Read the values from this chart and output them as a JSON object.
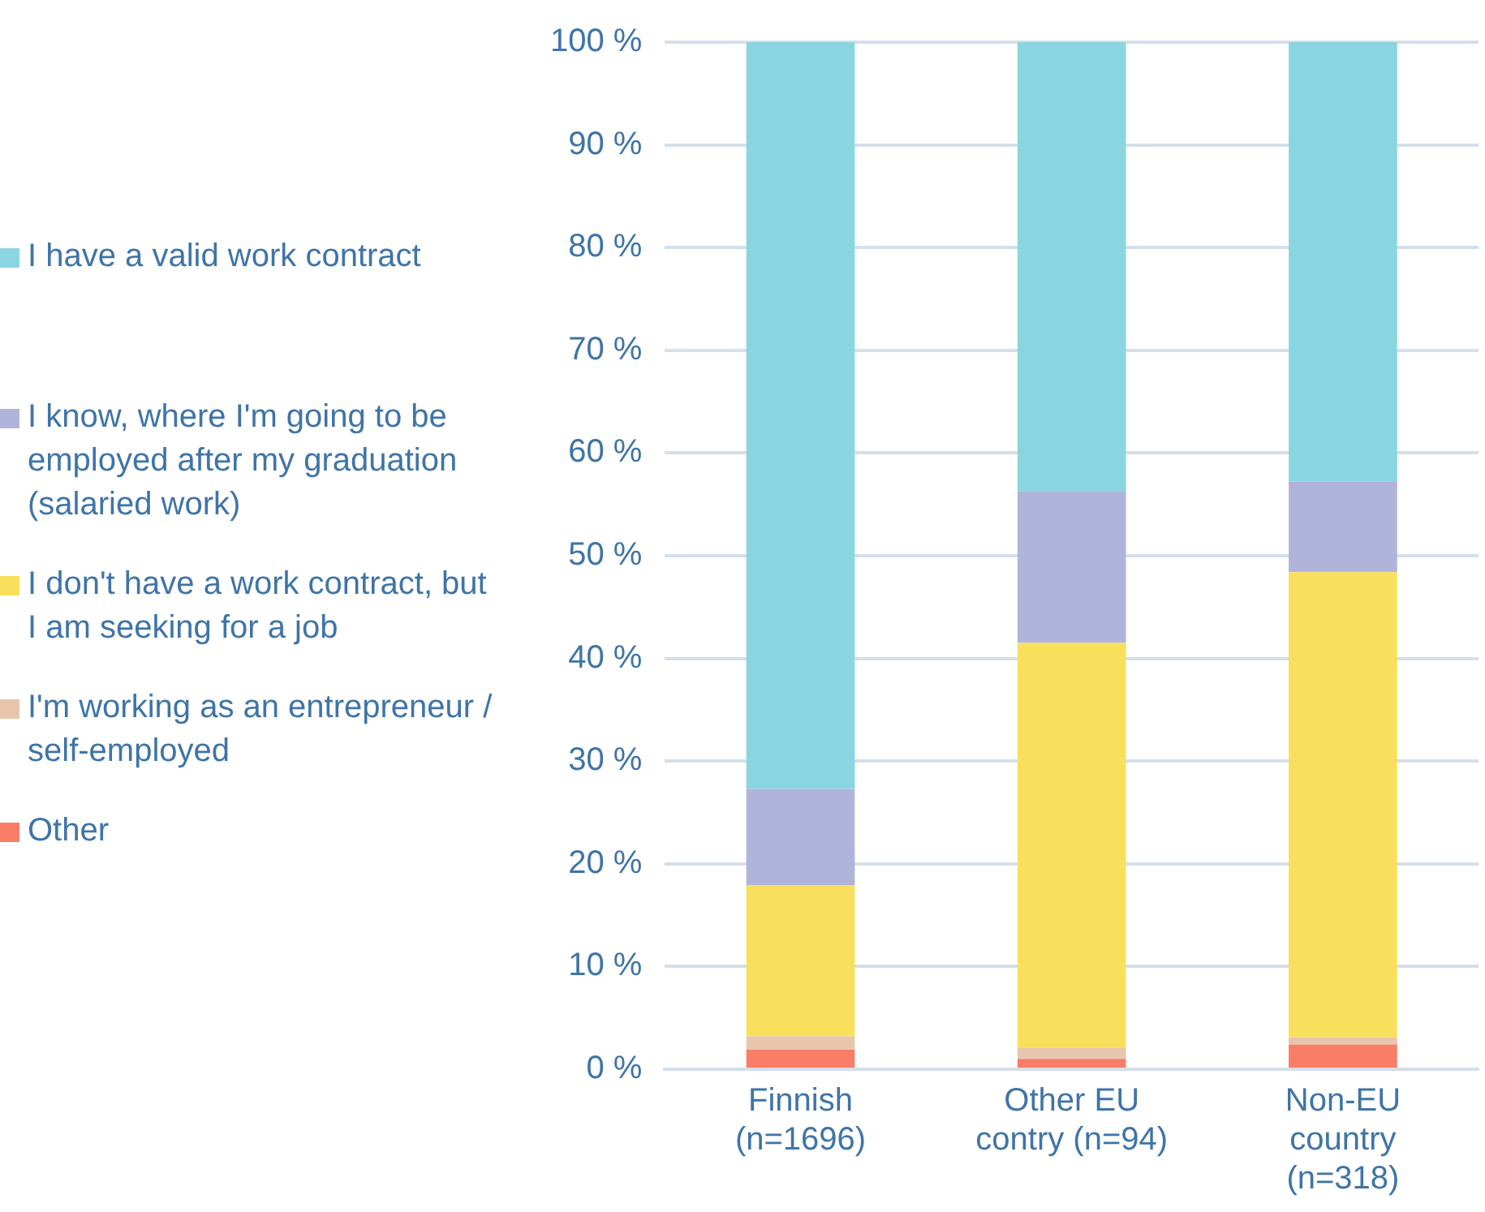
{
  "chart_data": {
    "type": "bar",
    "stacked": true,
    "categories": [
      "Finnish (n=1696)",
      "Other EU contry (n=94)",
      "Non-EU country (n=318)"
    ],
    "series": [
      {
        "name": "Other",
        "color": "#f97e68",
        "values": [
          1.9,
          1.0,
          2.4
        ]
      },
      {
        "name": "I'm working as an entrepreneur / self-employed",
        "color": "#e8c6ae",
        "values": [
          1.3,
          1.1,
          0.7
        ]
      },
      {
        "name": "I don't have a work contract, but I am seeking for a job",
        "color": "#f8e05c",
        "values": [
          14.7,
          39.4,
          45.3
        ]
      },
      {
        "name": "I know, where I'm going to be employed after my graduation (salaried work)",
        "color": "#b1b4da",
        "values": [
          9.4,
          14.8,
          8.8
        ]
      },
      {
        "name": "I have a valid work contract",
        "color": "#8ad6e0",
        "values": [
          72.7,
          43.7,
          42.8
        ]
      }
    ],
    "ylim": [
      0,
      100
    ],
    "yticks": [
      {
        "value": 0,
        "label": "0 %"
      },
      {
        "value": 10,
        "label": "10 %"
      },
      {
        "value": 20,
        "label": "20 %"
      },
      {
        "value": 30,
        "label": "30 %"
      },
      {
        "value": 40,
        "label": "40 %"
      },
      {
        "value": 50,
        "label": "50 %"
      },
      {
        "value": 60,
        "label": "60 %"
      },
      {
        "value": 70,
        "label": "70 %"
      },
      {
        "value": 80,
        "label": "80 %"
      },
      {
        "value": 90,
        "label": "90 %"
      },
      {
        "value": 100,
        "label": "100 %"
      }
    ],
    "grid": "y",
    "legend": "left"
  }
}
